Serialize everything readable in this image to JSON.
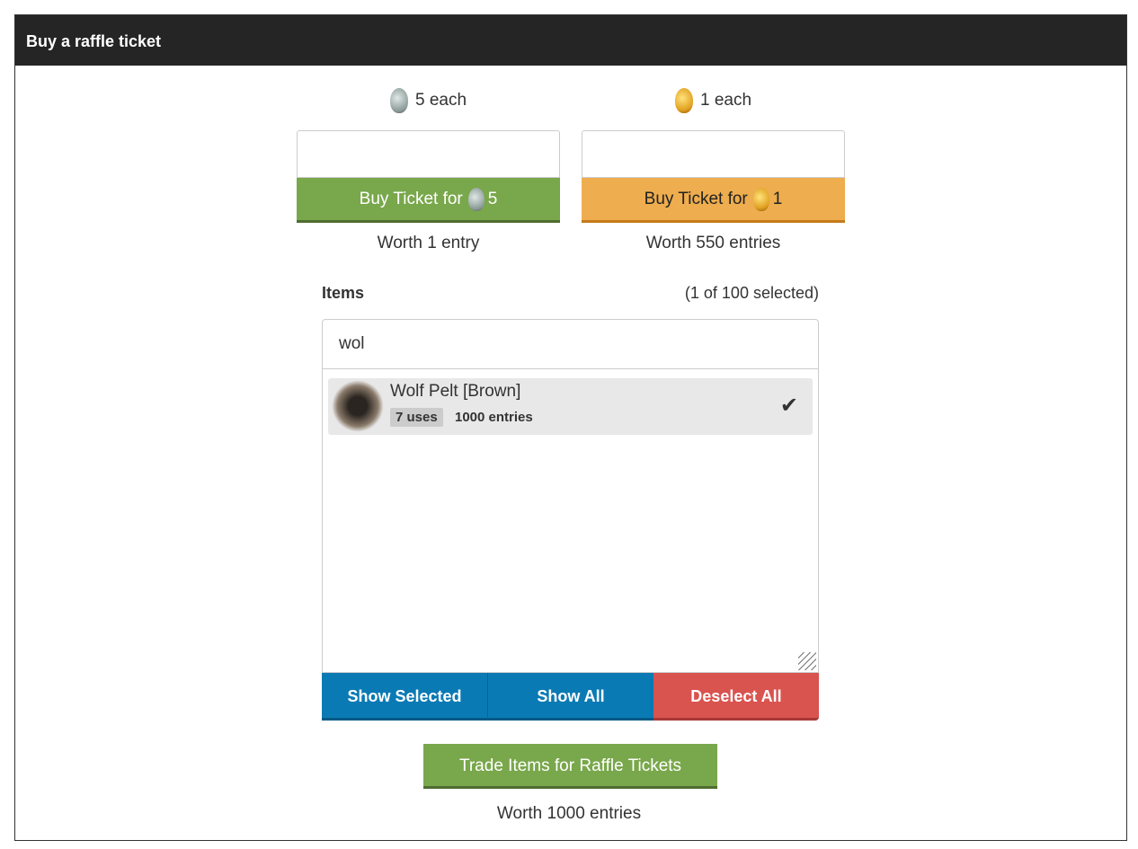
{
  "header": {
    "title": "Buy a raffle ticket"
  },
  "silver": {
    "price": "5 each",
    "button": "Buy Ticket for",
    "amount": "5",
    "worth": "Worth 1 entry",
    "color": "#79a74b"
  },
  "gold": {
    "price": "1 each",
    "button": "Buy Ticket for",
    "amount": "1",
    "worth": "Worth 550 entries",
    "color": "#eead4e"
  },
  "items": {
    "label": "Items",
    "count": "(1 of 100 selected)",
    "search": "wol",
    "list": [
      {
        "name": "Wolf Pelt [Brown]",
        "uses": "7 uses",
        "entries": "1000 entries",
        "selected": true
      }
    ],
    "show_selected": "Show Selected",
    "show_all": "Show All",
    "deselect_all": "Deselect All"
  },
  "trade": {
    "button": "Trade Items for Raffle Tickets",
    "worth": "Worth 1000 entries"
  }
}
